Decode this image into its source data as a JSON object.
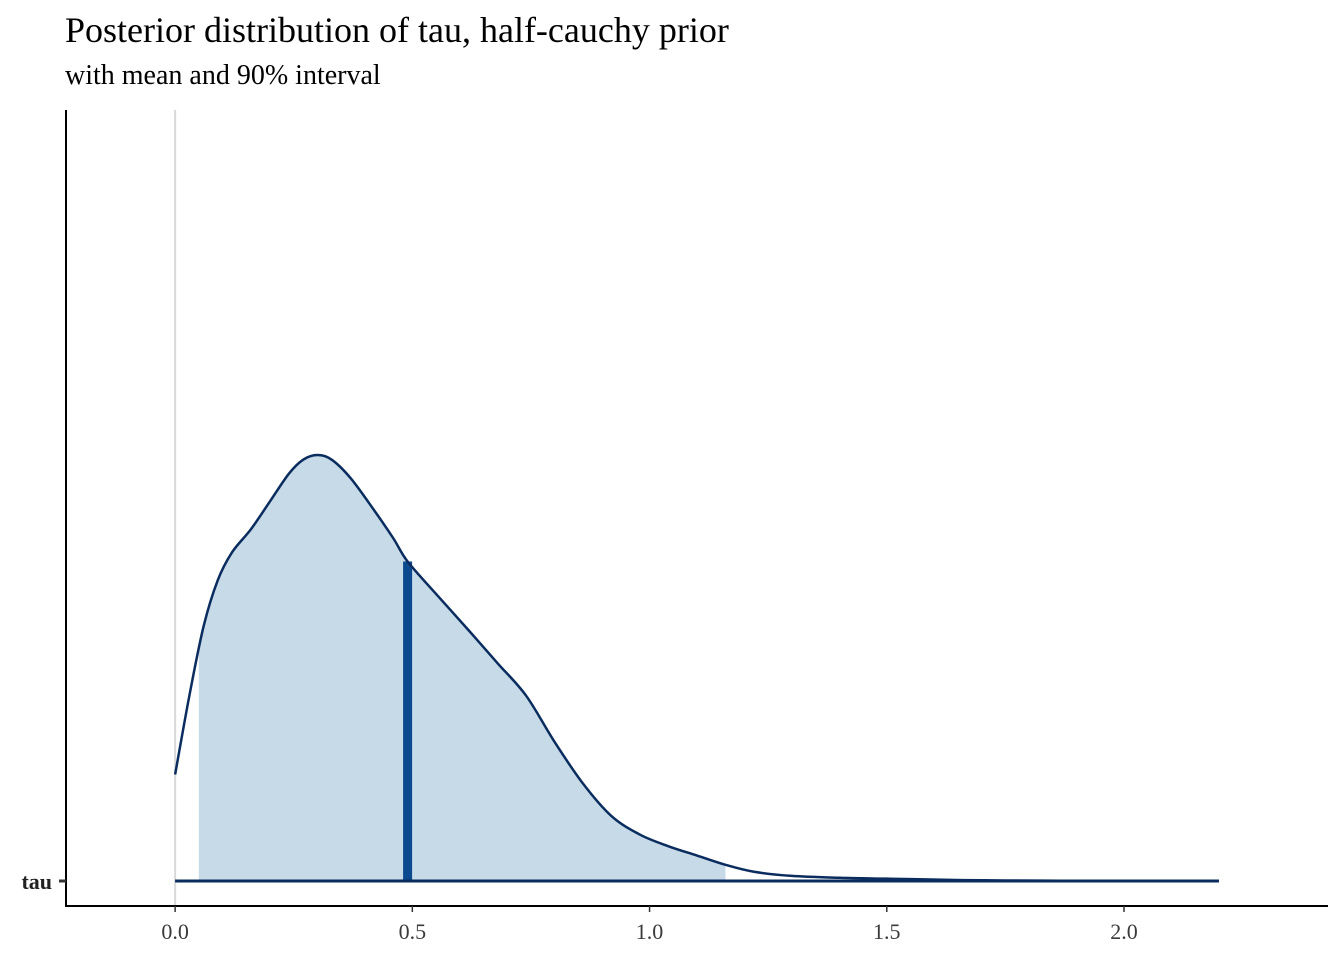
{
  "chart_data": {
    "type": "area",
    "title": "Posterior distribution of tau, half-cauchy prior",
    "subtitle": "with mean and 90% interval",
    "xlabel": "",
    "ylabel": "",
    "parameter": "tau",
    "xlim": [
      -0.23,
      2.43
    ],
    "x_ticks": [
      0.0,
      0.5,
      1.0,
      1.5,
      2.0
    ],
    "x_tick_labels": [
      "0.0",
      "0.5",
      "1.0",
      "1.5",
      "2.0"
    ],
    "y_ticks": [
      "tau"
    ],
    "mean": 0.49,
    "interval_90": [
      0.05,
      1.16
    ],
    "density": {
      "x": [
        0.0,
        0.03,
        0.06,
        0.09,
        0.12,
        0.16,
        0.2,
        0.24,
        0.27,
        0.3,
        0.33,
        0.37,
        0.42,
        0.46,
        0.49,
        0.55,
        0.62,
        0.68,
        0.74,
        0.8,
        0.86,
        0.92,
        0.98,
        1.04,
        1.1,
        1.16,
        1.22,
        1.3,
        1.4,
        1.5,
        1.58,
        1.66,
        1.75,
        1.83,
        1.9,
        1.96,
        2.02,
        2.08,
        2.14,
        2.2
      ],
      "y": [
        0.23,
        0.4,
        0.55,
        0.65,
        0.71,
        0.76,
        0.82,
        0.88,
        0.91,
        0.92,
        0.91,
        0.87,
        0.8,
        0.74,
        0.69,
        0.62,
        0.54,
        0.47,
        0.4,
        0.3,
        0.21,
        0.14,
        0.1,
        0.075,
        0.055,
        0.035,
        0.02,
        0.011,
        0.007,
        0.005,
        0.0035,
        0.002,
        0.0012,
        0.0007,
        0.0002,
        0.0003,
        0.0006,
        0.0003,
        0.0001,
        0.0
      ]
    },
    "colors": {
      "fill": "#c6dae8",
      "line": "#0a2c5e",
      "mean_line": "#0b4a8f",
      "zero_line": "#d9d9d9",
      "axis": "#000000"
    },
    "grid": false,
    "legend": "none"
  }
}
